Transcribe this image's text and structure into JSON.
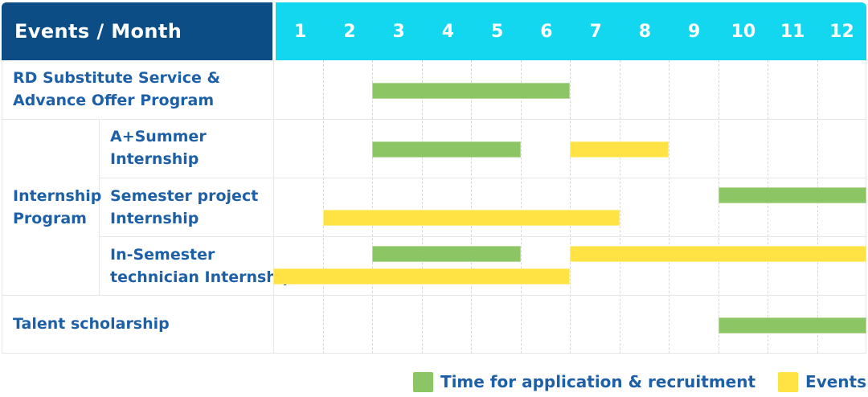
{
  "header": {
    "title": "Events / Month"
  },
  "months": [
    "1",
    "2",
    "3",
    "4",
    "5",
    "6",
    "7",
    "8",
    "9",
    "10",
    "11",
    "12"
  ],
  "colors": {
    "header_navy": "#0b4d84",
    "header_cyan": "#12d7ef",
    "application_green": "#8cc564",
    "event_yellow": "#ffe345",
    "text_blue": "#1e60a8",
    "grid_line": "#e6e6e8",
    "grid_dash": "#d7d7da"
  },
  "group": {
    "name": "Internship Program",
    "label_lines": [
      "Internship",
      "Program"
    ]
  },
  "legend": {
    "application_label": "Time for application & recruitment",
    "events_label": "Events"
  },
  "chart_data": {
    "type": "bar",
    "subtype": "gantt-timeline",
    "title": "Events / Month",
    "xlabel": "Month",
    "x_ticks": [
      1,
      2,
      3,
      4,
      5,
      6,
      7,
      8,
      9,
      10,
      11,
      12
    ],
    "x_range": [
      1,
      12
    ],
    "grid": "dashed-vertical-month-separators",
    "legend_position": "bottom-right",
    "legend": [
      {
        "label": "Time for application & recruitment",
        "kind": "application",
        "color": "#8cc564"
      },
      {
        "label": "Events",
        "kind": "event",
        "color": "#ffe345"
      }
    ],
    "rows": [
      {
        "event": "RD Substitute Service & Advance Offer Program",
        "group": null,
        "label_lines": [
          "RD Substitute Service &",
          "Advance Offer Program"
        ],
        "spans": [
          {
            "kind": "application",
            "start_month": 3,
            "end_month": 6,
            "lane": "center"
          }
        ]
      },
      {
        "event": "A+Summer Internship",
        "group": "Internship Program",
        "label_lines": [
          "A+Summer",
          "Internship"
        ],
        "spans": [
          {
            "kind": "application",
            "start_month": 3,
            "end_month": 5,
            "lane": "center"
          },
          {
            "kind": "event",
            "start_month": 7,
            "end_month": 8,
            "lane": "center"
          }
        ]
      },
      {
        "event": "Semester project Internship",
        "group": "Internship Program",
        "label_lines": [
          "Semester project",
          "Internship"
        ],
        "spans": [
          {
            "kind": "application",
            "start_month": 10,
            "end_month": 12,
            "lane": "top"
          },
          {
            "kind": "event",
            "start_month": 2,
            "end_month": 7,
            "lane": "bottom"
          }
        ]
      },
      {
        "event": "In-Semester technician Internship",
        "group": "Internship Program",
        "label_lines": [
          "In-Semester",
          "technician Internship"
        ],
        "spans": [
          {
            "kind": "application",
            "start_month": 3,
            "end_month": 5,
            "lane": "top"
          },
          {
            "kind": "event",
            "start_month": 7,
            "end_month": 12,
            "lane": "top"
          },
          {
            "kind": "event",
            "start_month": 1,
            "end_month": 6,
            "lane": "bottom"
          }
        ]
      },
      {
        "event": "Talent scholarship",
        "group": null,
        "label_lines": [
          "Talent scholarship"
        ],
        "spans": [
          {
            "kind": "application",
            "start_month": 10,
            "end_month": 12,
            "lane": "center"
          }
        ]
      }
    ]
  }
}
